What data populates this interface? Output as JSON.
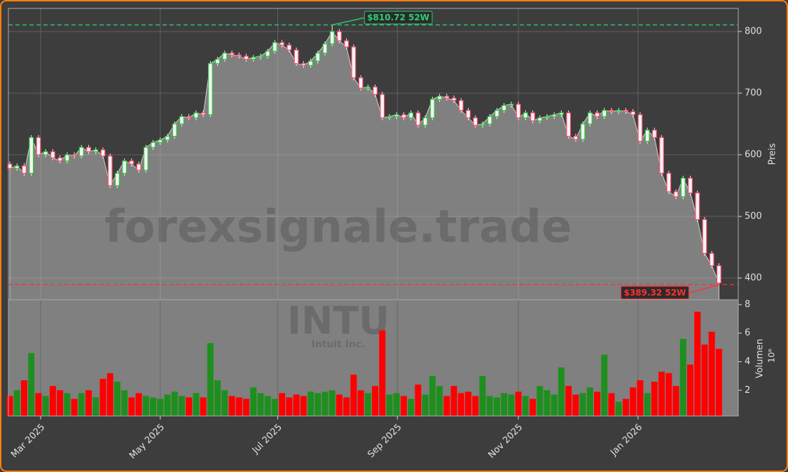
{
  "chart_data": {
    "type": "candlestick",
    "watermark": "forexsignale.trade",
    "ticker": "INTU",
    "company": "Intuit Inc.",
    "ylabel": "Preis",
    "ylim": [
      364.8,
      837.5
    ],
    "yticks": [
      400,
      500,
      600,
      700,
      800
    ],
    "xlim": [
      -0.2,
      101.7
    ],
    "xticks": [
      {
        "value": 4.3,
        "label": "Mar 2025"
      },
      {
        "value": 21.0,
        "label": "May 2025"
      },
      {
        "value": 37.4,
        "label": "Jul 2025"
      },
      {
        "value": 54.1,
        "label": "Sep 2025"
      },
      {
        "value": 71.0,
        "label": "Nov 2025"
      },
      {
        "value": 87.7,
        "label": "Jan 2026"
      }
    ],
    "grid": true,
    "up_color": "#2ecc40",
    "down_color": "#ff4d6d",
    "area_color": "#808080",
    "open": [
      585,
      578,
      582,
      570,
      628,
      600,
      605,
      595,
      590,
      600,
      598,
      612,
      605,
      608,
      598,
      550,
      570,
      590,
      585,
      575,
      612,
      620,
      624,
      630,
      650,
      662,
      660,
      668,
      665,
      748,
      755,
      765,
      762,
      760,
      755,
      758,
      760,
      768,
      782,
      778,
      770,
      748,
      745,
      752,
      765,
      780,
      800,
      785,
      775,
      725,
      708,
      710,
      698,
      660,
      662,
      665,
      660,
      668,
      648,
      660,
      690,
      695,
      692,
      688,
      672,
      660,
      648,
      650,
      662,
      672,
      680,
      682,
      660,
      668,
      655,
      660,
      662,
      665,
      668,
      630,
      625,
      650,
      668,
      662,
      672,
      670,
      672,
      670,
      665,
      622,
      640,
      628,
      570,
      540,
      532,
      562,
      538,
      495,
      440,
      420
    ],
    "high": [
      589,
      586,
      586,
      632,
      632,
      609,
      609,
      599,
      604,
      604,
      616,
      616,
      612,
      612,
      602,
      574,
      594,
      594,
      589,
      616,
      624,
      628,
      634,
      654,
      666,
      666,
      672,
      672,
      752,
      759,
      769,
      769,
      766,
      764,
      762,
      764,
      772,
      786,
      786,
      782,
      774,
      752,
      756,
      769,
      784,
      810.72,
      804,
      789,
      779,
      729,
      714,
      714,
      702,
      666,
      669,
      669,
      672,
      672,
      664,
      694,
      699,
      699,
      696,
      692,
      676,
      664,
      654,
      666,
      676,
      684,
      686,
      686,
      672,
      672,
      664,
      666,
      669,
      672,
      672,
      634,
      654,
      672,
      672,
      676,
      676,
      676,
      676,
      674,
      669,
      644,
      644,
      632,
      574,
      544,
      566,
      566,
      542,
      499,
      444,
      424
    ],
    "low": [
      574,
      574,
      566,
      566,
      596,
      596,
      591,
      586,
      586,
      594,
      594,
      601,
      601,
      594,
      546,
      546,
      566,
      581,
      571,
      571,
      608,
      616,
      620,
      626,
      646,
      656,
      656,
      661,
      661,
      744,
      751,
      758,
      756,
      751,
      751,
      754,
      756,
      764,
      774,
      766,
      744,
      741,
      741,
      748,
      761,
      776,
      781,
      771,
      721,
      704,
      704,
      694,
      656,
      656,
      658,
      656,
      656,
      644,
      644,
      656,
      686,
      688,
      684,
      668,
      656,
      644,
      644,
      646,
      658,
      668,
      676,
      656,
      656,
      651,
      651,
      656,
      658,
      661,
      626,
      621,
      621,
      646,
      658,
      658,
      666,
      666,
      666,
      661,
      618,
      618,
      624,
      566,
      536,
      528,
      528,
      534,
      491,
      436,
      416,
      389.32
    ],
    "close": [
      578,
      582,
      570,
      628,
      600,
      605,
      595,
      590,
      600,
      598,
      612,
      605,
      608,
      598,
      550,
      570,
      590,
      585,
      575,
      612,
      620,
      624,
      630,
      650,
      662,
      660,
      668,
      665,
      748,
      755,
      765,
      762,
      760,
      755,
      758,
      760,
      768,
      782,
      778,
      770,
      748,
      745,
      752,
      765,
      780,
      800,
      785,
      775,
      725,
      708,
      710,
      698,
      660,
      662,
      665,
      660,
      668,
      648,
      660,
      690,
      695,
      692,
      688,
      672,
      660,
      648,
      650,
      662,
      672,
      680,
      682,
      660,
      668,
      655,
      660,
      662,
      665,
      668,
      630,
      625,
      650,
      668,
      662,
      672,
      670,
      672,
      670,
      665,
      622,
      640,
      628,
      570,
      540,
      532,
      562,
      538,
      495,
      440,
      420,
      392
    ],
    "volume": {
      "label": "Volumen",
      "offset_label": "10⁶",
      "ylim": [
        0.2,
        8.34
      ],
      "yticks": [
        2,
        4,
        6,
        8
      ],
      "up_color": "#1e8f1e",
      "down_color": "#ff0000",
      "values": [
        1.6,
        2.0,
        2.7,
        4.6,
        1.8,
        1.6,
        2.3,
        2.0,
        1.8,
        1.4,
        1.8,
        2.0,
        1.5,
        2.8,
        3.2,
        2.6,
        2.0,
        1.5,
        1.8,
        1.6,
        1.5,
        1.4,
        1.7,
        1.9,
        1.6,
        1.5,
        1.8,
        1.5,
        5.3,
        2.7,
        2.0,
        1.6,
        1.5,
        1.4,
        2.2,
        1.8,
        1.6,
        1.4,
        1.8,
        1.5,
        1.7,
        1.6,
        1.9,
        1.8,
        1.9,
        2.0,
        1.7,
        1.5,
        3.1,
        2.0,
        1.8,
        2.3,
        6.2,
        1.7,
        1.8,
        1.6,
        1.4,
        2.4,
        1.7,
        3.0,
        2.3,
        1.6,
        2.3,
        1.8,
        1.9,
        1.6,
        3.0,
        1.6,
        1.5,
        1.8,
        1.7,
        1.9,
        1.6,
        1.4,
        2.3,
        2.0,
        1.7,
        3.6,
        2.3,
        1.7,
        1.8,
        2.2,
        1.9,
        4.5,
        1.8,
        1.2,
        1.4,
        2.2,
        2.7,
        1.8,
        2.6,
        3.3,
        3.2,
        2.3,
        5.6,
        3.8,
        7.5,
        5.2,
        6.1,
        4.9
      ]
    },
    "annotations": [
      {
        "label": "$810.72 52W",
        "value": 810.72,
        "color": "#2ecc71"
      },
      {
        "label": "$389.32 52W",
        "value": 389.32,
        "color": "#ff3030"
      }
    ]
  }
}
